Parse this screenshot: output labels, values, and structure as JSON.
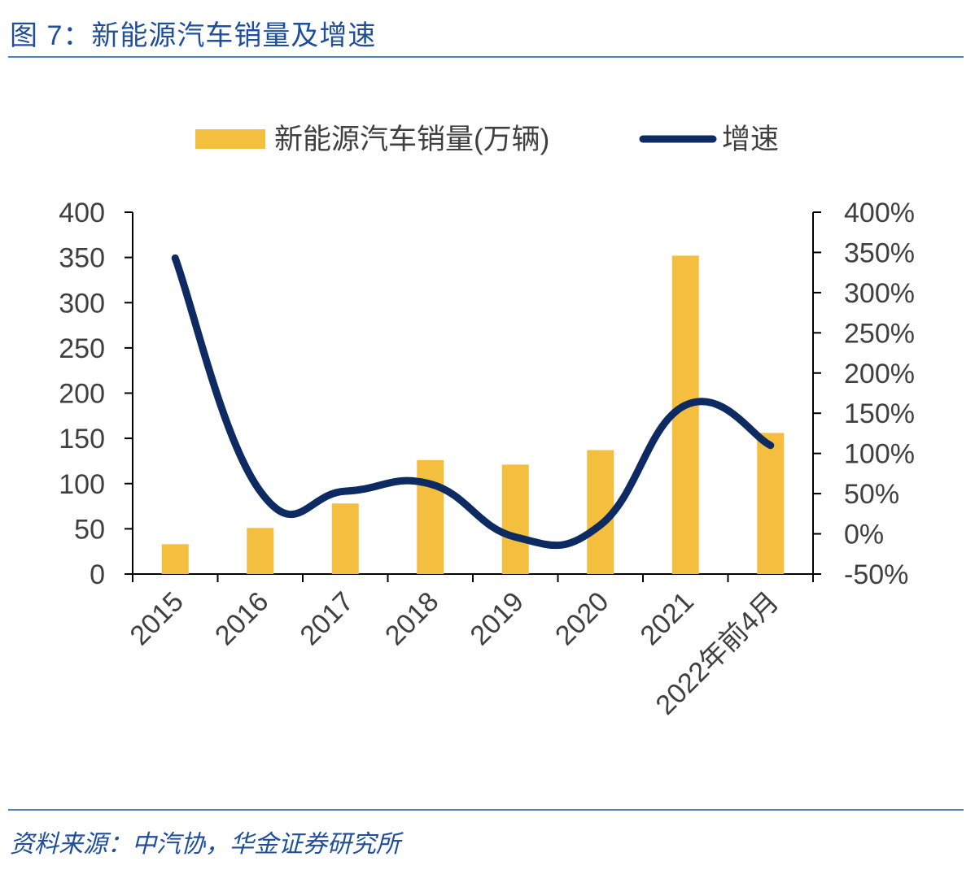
{
  "figure": {
    "title": "图 7：新能源汽车销量及增速",
    "source": "资料来源：中汽协，华金证券研究所"
  },
  "colors": {
    "bar": "#f4bf3f",
    "line": "#0d2a62",
    "title": "#1f4e9a",
    "axis": "#000000",
    "tick_text": "#404040"
  },
  "chart_data": {
    "type": "bar",
    "title": "",
    "categories": [
      "2015",
      "2016",
      "2017",
      "2018",
      "2019",
      "2020",
      "2021",
      "2022年前4月"
    ],
    "series": [
      {
        "name": "新能源汽车销量(万辆)",
        "type": "bar",
        "axis": "left",
        "values": [
          33,
          51,
          78,
          126,
          121,
          137,
          352,
          156
        ]
      },
      {
        "name": "增速",
        "type": "line",
        "axis": "right",
        "values": [
          3.43,
          0.53,
          0.53,
          0.62,
          -0.04,
          0.11,
          1.6,
          1.1
        ]
      }
    ],
    "y_left": {
      "min": 0,
      "max": 400,
      "ticks": [
        "0",
        "50",
        "100",
        "150",
        "200",
        "250",
        "300",
        "350",
        "400"
      ]
    },
    "y_right": {
      "min": -0.5,
      "max": 4.0,
      "ticks": [
        "-50%",
        "0%",
        "50%",
        "100%",
        "150%",
        "200%",
        "250%",
        "300%",
        "350%",
        "400%"
      ]
    },
    "legend_position": "top-center",
    "grid": false
  }
}
